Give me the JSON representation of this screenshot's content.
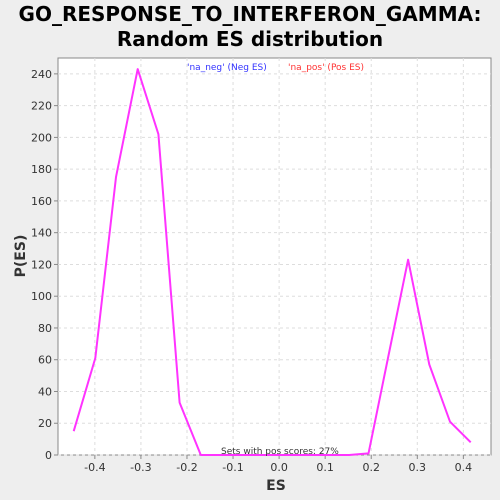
{
  "chart_data": {
    "type": "line",
    "title_lines": [
      "GO_RESPONSE_TO_INTERFERON_GAMMA:",
      "Random ES distribution"
    ],
    "xlabel": "ES",
    "ylabel": "P(ES)",
    "xlim": [
      -0.48,
      0.46
    ],
    "ylim": [
      0,
      250
    ],
    "xticks": [
      -0.4,
      -0.3,
      -0.2,
      -0.1,
      0.0,
      0.1,
      0.2,
      0.3,
      0.4
    ],
    "xtick_labels": [
      "-0.4",
      "-0.3",
      "-0.2",
      "-0.1",
      "0.0",
      "0.1",
      "0.2",
      "0.3",
      "0.4"
    ],
    "yticks": [
      0,
      20,
      40,
      60,
      80,
      100,
      120,
      140,
      160,
      180,
      200,
      220,
      240
    ],
    "ytick_labels": [
      "0",
      "20",
      "40",
      "60",
      "80",
      "100",
      "120",
      "140",
      "160",
      "180",
      "200",
      "220",
      "240"
    ],
    "grid": true,
    "legend_placement": "top",
    "legend": [
      {
        "label": "'na_neg' (Neg ES)",
        "color": "#3333ff"
      },
      {
        "label": "'na_pos' (Pos ES)",
        "color": "#ff3333"
      }
    ],
    "annotation": "Sets with pos scores: 27%",
    "line_color": "#ff33ff",
    "series": [
      {
        "x": [
          -0.446,
          -0.399,
          -0.354,
          -0.307,
          -0.262,
          -0.216,
          -0.17,
          -0.124,
          -0.078,
          -0.032,
          0.014,
          0.06,
          0.106,
          0.152,
          0.194,
          0.237,
          0.28,
          0.326,
          0.371,
          0.416
        ],
        "y": [
          15,
          61,
          175,
          243,
          202,
          33,
          0,
          0,
          0,
          0,
          0,
          0,
          0,
          0,
          1,
          62,
          123,
          57,
          21,
          8
        ]
      }
    ]
  }
}
